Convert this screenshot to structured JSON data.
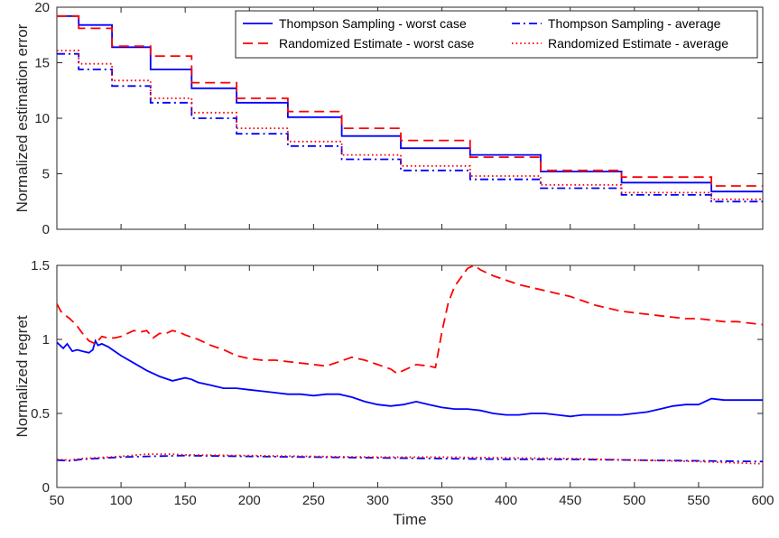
{
  "chart_data": [
    {
      "type": "line",
      "xlabel": "",
      "ylabel": "Normalized estimation error",
      "xlim": [
        50,
        600
      ],
      "ylim": [
        0,
        20
      ],
      "xticks": [
        50,
        100,
        150,
        200,
        250,
        300,
        350,
        400,
        450,
        500,
        550,
        600
      ],
      "yticks": [
        0,
        5,
        10,
        15,
        20
      ],
      "xtick_labels_shown": false,
      "grid": false,
      "legend": "top-right",
      "legend_columns": 2,
      "series": [
        {
          "name": "Thompson Sampling - worst case",
          "color": "#0000ff",
          "dash": "solid",
          "step": true,
          "x": [
            50,
            67,
            93,
            123,
            155,
            190,
            230,
            272,
            318,
            372,
            427,
            490,
            560,
            600
          ],
          "y": [
            19.2,
            18.4,
            16.4,
            14.4,
            12.7,
            11.4,
            10.1,
            8.4,
            7.3,
            6.7,
            5.2,
            4.2,
            3.4,
            3.4
          ]
        },
        {
          "name": "Randomized Estimate - worst case",
          "color": "#ff0000",
          "dash": "dashed",
          "step": true,
          "x": [
            50,
            67,
            93,
            123,
            155,
            190,
            230,
            272,
            318,
            372,
            427,
            490,
            560,
            600
          ],
          "y": [
            19.2,
            18.1,
            16.5,
            15.6,
            13.2,
            11.8,
            10.6,
            9.1,
            8.0,
            6.5,
            5.3,
            4.7,
            3.9,
            3.9
          ]
        },
        {
          "name": "Thompson Sampling - average",
          "color": "#0000ff",
          "dash": "dashdot",
          "step": true,
          "x": [
            50,
            67,
            93,
            123,
            155,
            190,
            230,
            272,
            318,
            372,
            427,
            490,
            560,
            600
          ],
          "y": [
            15.8,
            14.4,
            12.9,
            11.4,
            10.0,
            8.6,
            7.5,
            6.3,
            5.3,
            4.5,
            3.7,
            3.1,
            2.5,
            2.5
          ]
        },
        {
          "name": "Randomized Estimate - average",
          "color": "#ff0000",
          "dash": "dotted",
          "step": true,
          "x": [
            50,
            67,
            93,
            123,
            155,
            190,
            230,
            272,
            318,
            372,
            427,
            490,
            560,
            600
          ],
          "y": [
            16.1,
            14.9,
            13.4,
            11.8,
            10.5,
            9.1,
            7.9,
            6.7,
            5.7,
            4.8,
            4.0,
            3.3,
            2.7,
            2.7
          ]
        }
      ]
    },
    {
      "type": "line",
      "xlabel": "Time",
      "ylabel": "Normalized regret",
      "xlim": [
        50,
        600
      ],
      "ylim": [
        0,
        1.5
      ],
      "xticks": [
        50,
        100,
        150,
        200,
        250,
        300,
        350,
        400,
        450,
        500,
        550,
        600
      ],
      "yticks": [
        0,
        0.5,
        1,
        1.5
      ],
      "grid": false,
      "series": [
        {
          "name": "Thompson Sampling - worst case",
          "color": "#0000ff",
          "dash": "solid",
          "x": [
            50,
            55,
            58,
            62,
            66,
            70,
            75,
            78,
            80,
            82,
            85,
            90,
            95,
            100,
            110,
            120,
            130,
            140,
            150,
            155,
            160,
            170,
            180,
            190,
            200,
            210,
            220,
            230,
            240,
            250,
            260,
            270,
            280,
            290,
            300,
            310,
            320,
            330,
            340,
            350,
            360,
            370,
            380,
            390,
            400,
            410,
            420,
            430,
            440,
            450,
            460,
            470,
            480,
            490,
            500,
            510,
            520,
            530,
            540,
            550,
            560,
            570,
            580,
            590,
            600
          ],
          "y": [
            0.98,
            0.94,
            0.97,
            0.92,
            0.93,
            0.92,
            0.91,
            0.93,
            0.99,
            0.96,
            0.97,
            0.95,
            0.92,
            0.89,
            0.84,
            0.79,
            0.75,
            0.72,
            0.74,
            0.73,
            0.71,
            0.69,
            0.67,
            0.67,
            0.66,
            0.65,
            0.64,
            0.63,
            0.63,
            0.62,
            0.63,
            0.63,
            0.61,
            0.58,
            0.56,
            0.55,
            0.56,
            0.58,
            0.56,
            0.54,
            0.53,
            0.53,
            0.52,
            0.5,
            0.49,
            0.49,
            0.5,
            0.5,
            0.49,
            0.48,
            0.49,
            0.49,
            0.49,
            0.49,
            0.5,
            0.51,
            0.53,
            0.55,
            0.56,
            0.56,
            0.6,
            0.59,
            0.59,
            0.59,
            0.59
          ]
        },
        {
          "name": "Randomized Estimate - worst case",
          "color": "#ff0000",
          "dash": "dashed",
          "x": [
            50,
            53,
            57,
            60,
            65,
            70,
            75,
            80,
            85,
            90,
            95,
            100,
            105,
            110,
            115,
            120,
            125,
            130,
            135,
            140,
            145,
            150,
            160,
            170,
            180,
            190,
            200,
            210,
            220,
            230,
            240,
            250,
            260,
            270,
            280,
            290,
            300,
            310,
            315,
            320,
            330,
            340,
            345,
            350,
            355,
            360,
            365,
            370,
            375,
            380,
            390,
            400,
            410,
            420,
            430,
            440,
            450,
            460,
            470,
            480,
            490,
            500,
            510,
            520,
            530,
            540,
            550,
            560,
            570,
            580,
            590,
            600
          ],
          "y": [
            1.24,
            1.19,
            1.16,
            1.14,
            1.1,
            1.04,
            0.99,
            0.97,
            1.02,
            1.01,
            1.01,
            1.02,
            1.04,
            1.06,
            1.05,
            1.06,
            1.01,
            1.04,
            1.04,
            1.06,
            1.05,
            1.03,
            1.0,
            0.96,
            0.93,
            0.89,
            0.87,
            0.86,
            0.86,
            0.85,
            0.84,
            0.83,
            0.82,
            0.85,
            0.88,
            0.86,
            0.83,
            0.8,
            0.77,
            0.79,
            0.83,
            0.82,
            0.81,
            1.05,
            1.25,
            1.36,
            1.42,
            1.48,
            1.5,
            1.47,
            1.43,
            1.4,
            1.37,
            1.35,
            1.33,
            1.31,
            1.29,
            1.26,
            1.23,
            1.21,
            1.19,
            1.18,
            1.17,
            1.16,
            1.15,
            1.14,
            1.14,
            1.13,
            1.12,
            1.12,
            1.11,
            1.1
          ]
        },
        {
          "name": "Thompson Sampling - average",
          "color": "#0000ff",
          "dash": "dashdot",
          "x": [
            50,
            60,
            70,
            80,
            100,
            120,
            150,
            200,
            250,
            300,
            350,
            400,
            450,
            500,
            550,
            600
          ],
          "y": [
            0.185,
            0.18,
            0.19,
            0.195,
            0.205,
            0.21,
            0.215,
            0.21,
            0.205,
            0.2,
            0.195,
            0.19,
            0.19,
            0.185,
            0.18,
            0.175
          ]
        },
        {
          "name": "Randomized Estimate - average",
          "color": "#ff0000",
          "dash": "dotted",
          "x": [
            50,
            60,
            70,
            80,
            100,
            120,
            140,
            150,
            200,
            250,
            300,
            350,
            400,
            450,
            500,
            550,
            600
          ],
          "y": [
            0.19,
            0.185,
            0.195,
            0.2,
            0.21,
            0.225,
            0.225,
            0.22,
            0.215,
            0.21,
            0.205,
            0.205,
            0.2,
            0.195,
            0.185,
            0.175,
            0.16
          ]
        }
      ]
    }
  ]
}
